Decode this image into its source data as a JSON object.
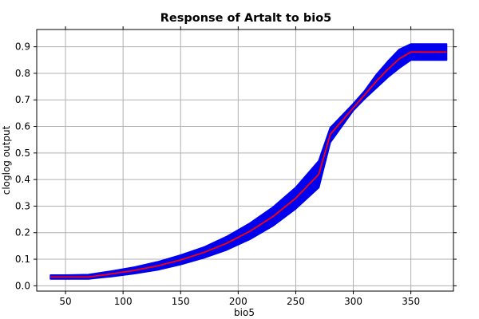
{
  "chart_data": {
    "type": "line",
    "title": "Response of Artalt to bio5",
    "xlabel": "bio5",
    "ylabel": "cloglog output",
    "xlim": [
      25,
      387
    ],
    "ylim": [
      -0.02,
      0.965
    ],
    "xticks": [
      50,
      100,
      150,
      200,
      250,
      300,
      350
    ],
    "yticks": [
      0.0,
      0.1,
      0.2,
      0.3,
      0.4,
      0.5,
      0.6,
      0.7,
      0.8,
      0.9
    ],
    "ytick_labels": [
      "0.0",
      "0.1",
      "0.2",
      "0.3",
      "0.4",
      "0.5",
      "0.6",
      "0.7",
      "0.8",
      "0.9"
    ],
    "grid": true,
    "series": [
      {
        "role": "mean",
        "color": "#ff0000",
        "x": [
          37,
          50,
          70,
          90,
          110,
          130,
          150,
          170,
          190,
          210,
          230,
          250,
          270,
          280,
          290,
          300,
          310,
          320,
          330,
          340,
          350,
          381
        ],
        "y": [
          0.033,
          0.033,
          0.033,
          0.045,
          0.058,
          0.075,
          0.097,
          0.125,
          0.16,
          0.205,
          0.26,
          0.33,
          0.42,
          0.57,
          0.62,
          0.67,
          0.72,
          0.77,
          0.815,
          0.855,
          0.88,
          0.88
        ]
      },
      {
        "role": "band-upper",
        "color": "#0000ee",
        "x": [
          37,
          50,
          70,
          90,
          110,
          130,
          150,
          170,
          190,
          210,
          230,
          250,
          270,
          280,
          290,
          300,
          310,
          320,
          330,
          340,
          350,
          381
        ],
        "y": [
          0.04,
          0.04,
          0.042,
          0.055,
          0.07,
          0.09,
          0.115,
          0.145,
          0.185,
          0.235,
          0.295,
          0.37,
          0.47,
          0.595,
          0.64,
          0.685,
          0.735,
          0.795,
          0.845,
          0.89,
          0.91,
          0.91
        ]
      },
      {
        "role": "band-lower",
        "color": "#0000ee",
        "x": [
          37,
          50,
          70,
          90,
          110,
          130,
          150,
          170,
          190,
          210,
          230,
          250,
          270,
          280,
          290,
          300,
          310,
          320,
          330,
          340,
          350,
          381
        ],
        "y": [
          0.026,
          0.026,
          0.026,
          0.035,
          0.046,
          0.06,
          0.08,
          0.105,
          0.135,
          0.175,
          0.225,
          0.29,
          0.37,
          0.54,
          0.6,
          0.66,
          0.705,
          0.745,
          0.785,
          0.82,
          0.85,
          0.85
        ]
      }
    ]
  }
}
